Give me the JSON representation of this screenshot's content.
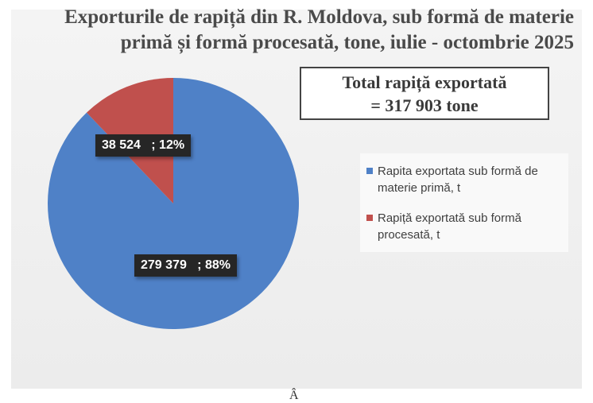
{
  "chart_data": {
    "type": "pie",
    "title": "Exporturile de rapiță din R. Moldova, sub formă de materie primă și formă procesată, tone, iulie - octombrie 2025",
    "annotation_lines": [
      "Total rapiță exportată",
      "= 317 903 tone"
    ],
    "slices": [
      {
        "label": "Rapita exportata sub formă de materie primă, t",
        "value": 279379,
        "percent": 88,
        "data_label": "279 379   ; 88%",
        "color": "#4f81c7"
      },
      {
        "label": "Rapiță exportată sub formă procesată, t",
        "value": 38524,
        "percent": 12,
        "data_label": "38 524   ; 12%",
        "color": "#c0504d"
      }
    ],
    "legend_position": "right"
  },
  "footer_mark": "Â"
}
